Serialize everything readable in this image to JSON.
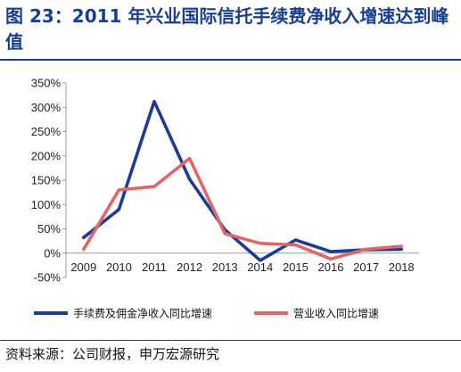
{
  "figure": {
    "title": "图 23：2011 年兴业国际信托手续费净收入增速达到峰值",
    "source": "资料来源：公司财报，申万宏源研究"
  },
  "chart_data": {
    "type": "line",
    "title": "",
    "xlabel": "",
    "ylabel": "",
    "x": [
      "2009",
      "2010",
      "2011",
      "2012",
      "2013",
      "2014",
      "2015",
      "2016",
      "2017",
      "2018"
    ],
    "yticks": [
      "350%",
      "300%",
      "250%",
      "200%",
      "150%",
      "100%",
      "50%",
      "0%",
      "-50%"
    ],
    "ylim": [
      -50,
      350
    ],
    "grid": false,
    "legend_position": "bottom",
    "series": [
      {
        "name": "手续费及佣金净收入同比增速",
        "color": "#1f3a93",
        "values": [
          32,
          90,
          312,
          152,
          48,
          -15,
          27,
          3,
          7,
          8
        ]
      },
      {
        "name": "营业收入同比增速",
        "color": "#e06666",
        "values": [
          8,
          130,
          137,
          195,
          40,
          20,
          17,
          -12,
          8,
          14
        ]
      }
    ]
  }
}
